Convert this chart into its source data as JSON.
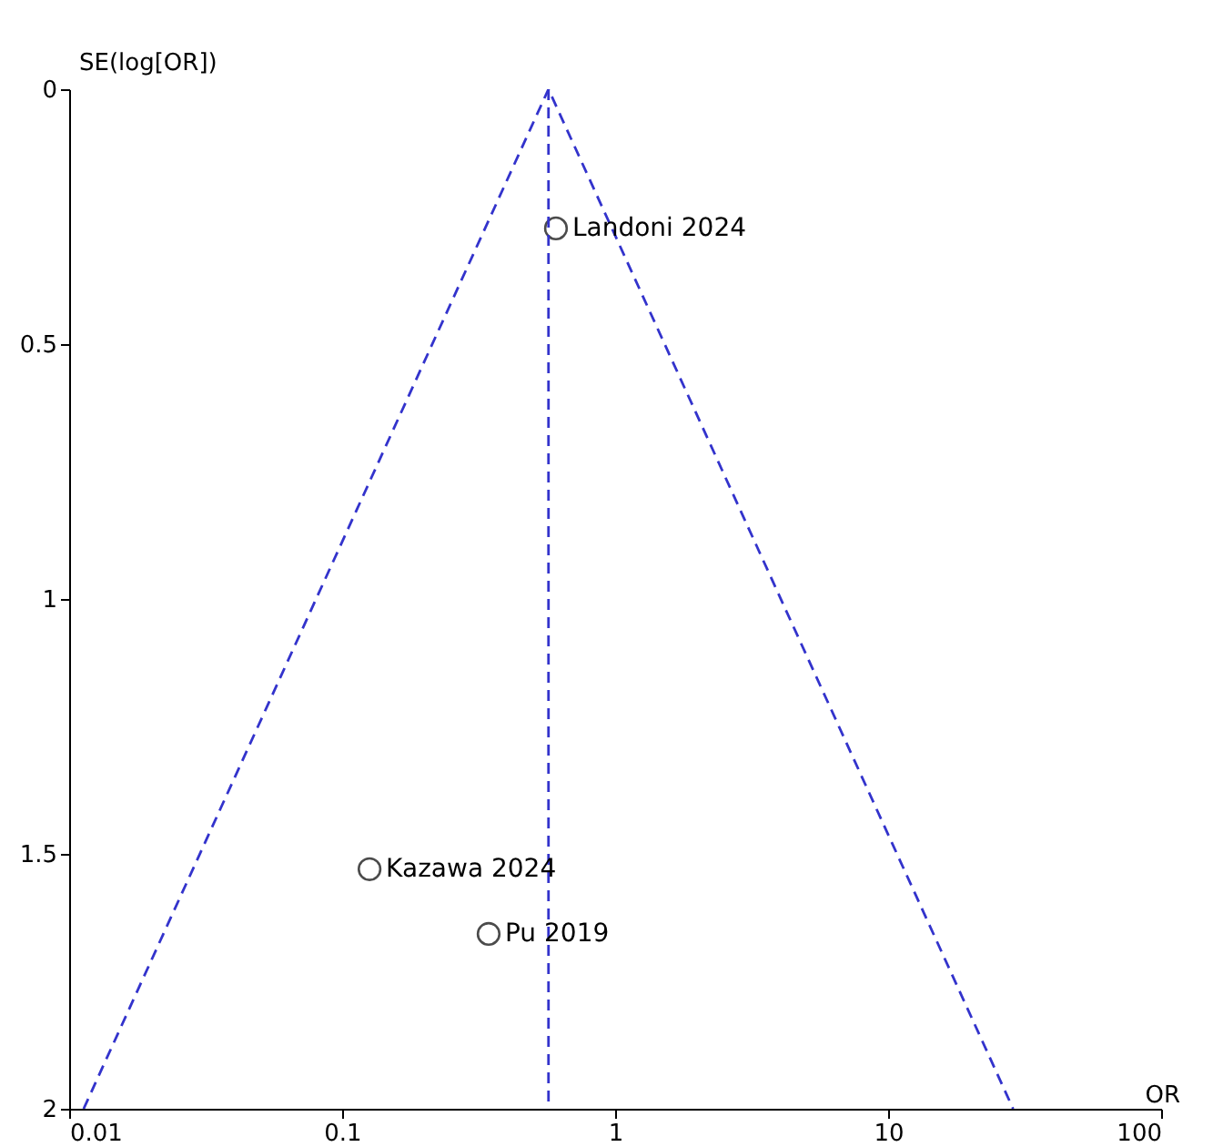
{
  "chart_data": {
    "type": "scatter",
    "xlabel": "OR",
    "ylabel": "SE(log[OR])",
    "log": "x",
    "xlim": [
      0.01,
      100
    ],
    "xticks": [
      0.01,
      0.1,
      1,
      10,
      100
    ],
    "ylim": [
      2,
      0
    ],
    "yticks": [
      0,
      0.5,
      1,
      1.5,
      2
    ],
    "grid": false,
    "series": [
      {
        "marker": "circle",
        "color": "#000000",
        "x": [
          0.607,
          0.126,
          0.344
        ],
        "values": [
          0.273,
          1.53,
          1.657
        ]
      },
      {
        "type": "line",
        "line_style": "dashed",
        "color": "#3333cc",
        "x": [
          0.0113,
          0.57,
          28.7
        ],
        "values": [
          2,
          0,
          2
        ]
      },
      {
        "type": "line",
        "line_style": "dashed",
        "color": "#3333cc",
        "x": [
          0.57,
          0.57
        ],
        "values": [
          0,
          2
        ]
      }
    ],
    "annotations": [
      {
        "text": "Landoni 2024",
        "x": 0.607,
        "y": 0.273
      },
      {
        "text": "Kazawa 2024",
        "x": 0.126,
        "y": 1.53
      },
      {
        "text": "Pu 2019",
        "x": 0.344,
        "y": 1.657
      }
    ]
  }
}
